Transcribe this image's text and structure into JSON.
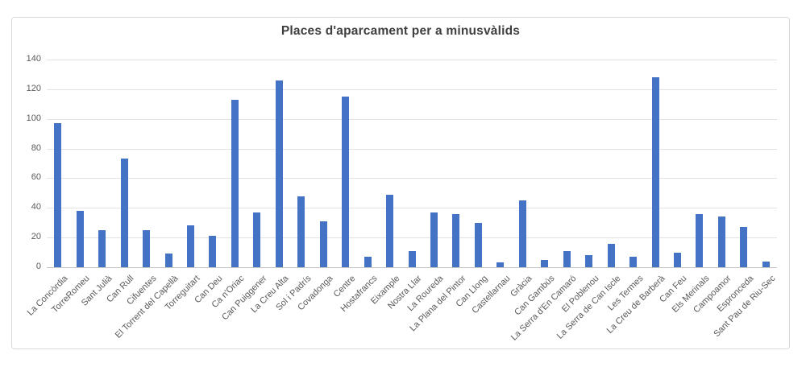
{
  "chart_data": {
    "type": "bar",
    "title": "Places d'aparcament per a minusvàlids",
    "categories": [
      "La Concòrdia",
      "TorreRomeu",
      "Sant Julià",
      "Can Rull",
      "Cifuentes",
      "El Torrent del Capellà",
      "Torreguitart",
      "Can Deu",
      "Ca n'Oriac",
      "Can Puiggener",
      "La Creu Alta",
      "Sol i Padrís",
      "Covadonga",
      "Centre",
      "Hostafrancs",
      "Eixample",
      "Nostra Llar",
      "La Roureda",
      "La Plana del Pintor",
      "Can Llong",
      "Castellarnau",
      "Gràcia",
      "Can Gambús",
      "La Serra d'En Camaró",
      "El Poblenou",
      "La Serra de Can Iscle",
      "Les Termes",
      "La Creu de Barberà",
      "Can Feu",
      "Els Merinals",
      "Campoamor",
      "Espronceda",
      "Sant Pau de Riu-Sec"
    ],
    "values": [
      97,
      38,
      25,
      73,
      25,
      9,
      28,
      21,
      113,
      37,
      126,
      48,
      31,
      115,
      7,
      49,
      11,
      37,
      36,
      30,
      3,
      45,
      5,
      11,
      8,
      16,
      7,
      128,
      10,
      36,
      34,
      27,
      4
    ],
    "xlabel": "",
    "ylabel": "",
    "ylim": [
      0,
      140
    ],
    "ytick_step": 20,
    "grid": true,
    "legend": false,
    "bar_color": "#4472c4",
    "gridline_color": "#e2e2e2",
    "axis_line_color": "#c6c6c6",
    "tick_label_color": "#595959",
    "title_color": "#3f3f3f"
  }
}
